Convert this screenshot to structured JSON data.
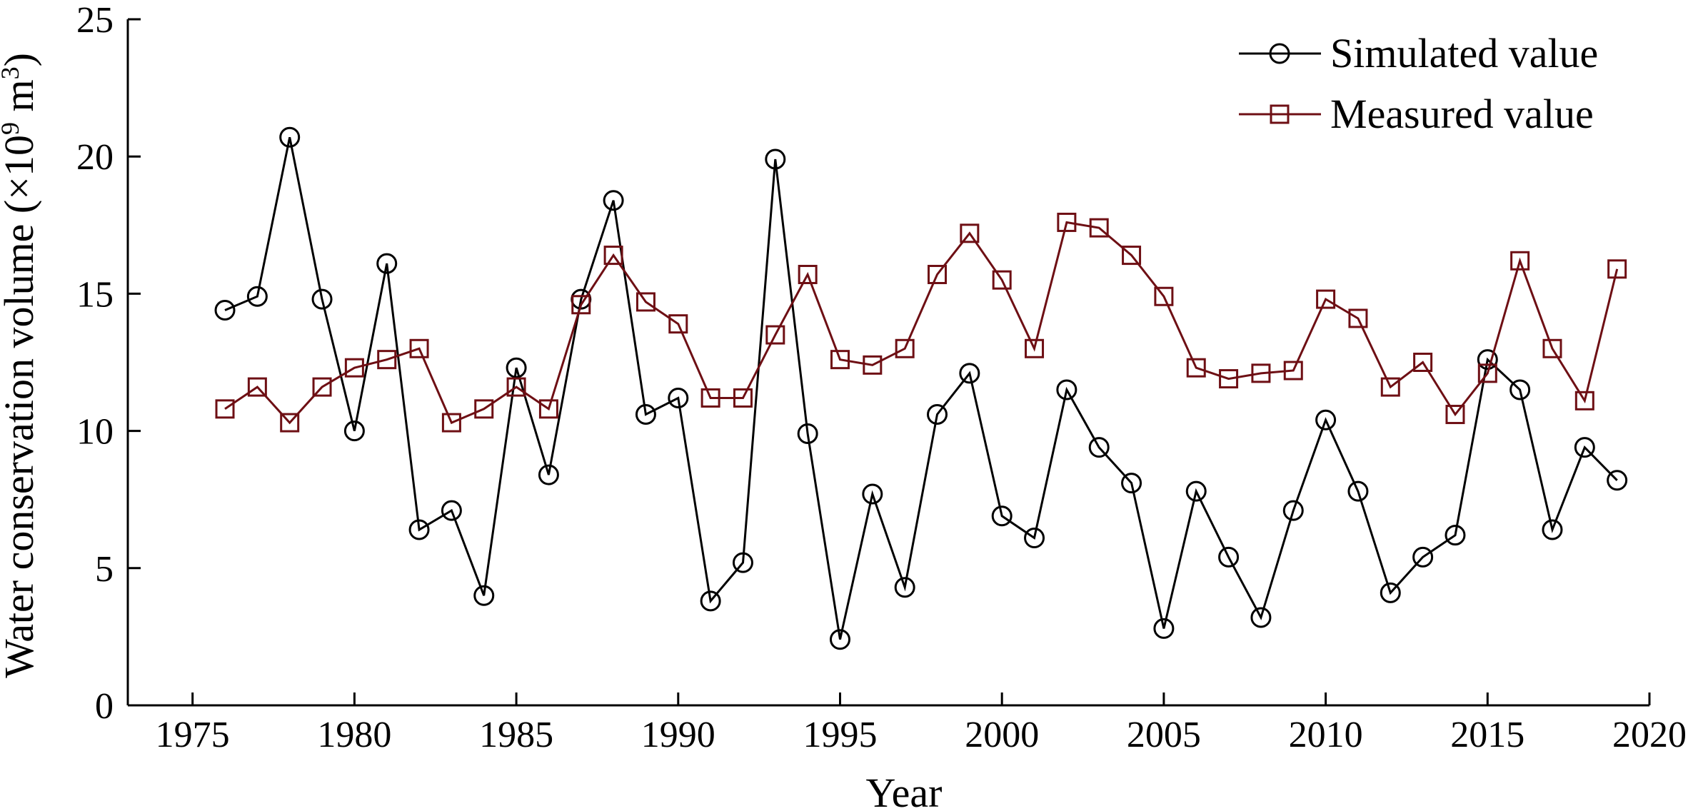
{
  "chart_data": {
    "type": "line",
    "title": "",
    "xlabel": "Year",
    "ylabel_main": "Water conservation volume (×10",
    "ylabel_sup": "9",
    "ylabel_unit": " m",
    "ylabel_unit_sup": "3",
    "ylabel_close": ")",
    "xlim": [
      1973,
      2020
    ],
    "ylim": [
      0,
      25
    ],
    "x_ticks": [
      1975,
      1980,
      1985,
      1990,
      1995,
      2000,
      2005,
      2010,
      2015,
      2020
    ],
    "x_tick_labels": [
      "1975",
      "1980",
      "1985",
      "1990",
      "1995",
      "2000",
      "2005",
      "2010",
      "2015",
      "2020"
    ],
    "y_ticks": [
      0,
      5,
      10,
      15,
      20,
      25
    ],
    "y_tick_labels": [
      "0",
      "5",
      "10",
      "15",
      "20",
      "25"
    ],
    "grid": false,
    "legend_position": "top-right",
    "x": [
      1976,
      1977,
      1978,
      1979,
      1980,
      1981,
      1982,
      1983,
      1984,
      1985,
      1986,
      1987,
      1988,
      1989,
      1990,
      1991,
      1992,
      1993,
      1994,
      1995,
      1996,
      1997,
      1998,
      1999,
      2000,
      2001,
      2002,
      2003,
      2004,
      2005,
      2006,
      2007,
      2008,
      2009,
      2010,
      2011,
      2012,
      2013,
      2014,
      2015,
      2016,
      2017,
      2018,
      2019
    ],
    "series": [
      {
        "name": "Simulated value",
        "color": "#000000",
        "marker": "circle",
        "values": [
          14.4,
          14.9,
          20.7,
          14.8,
          10.0,
          16.1,
          6.4,
          7.1,
          4.0,
          12.3,
          8.4,
          14.8,
          18.4,
          10.6,
          11.2,
          3.8,
          5.2,
          19.9,
          9.9,
          2.4,
          7.7,
          4.3,
          10.6,
          12.1,
          6.9,
          6.1,
          11.5,
          9.4,
          8.1,
          2.8,
          7.8,
          5.4,
          3.2,
          7.1,
          10.4,
          7.8,
          4.1,
          5.4,
          6.2,
          12.6,
          11.5,
          6.4,
          9.4,
          8.2
        ]
      },
      {
        "name": "Measured value",
        "color": "#6e0f14",
        "marker": "square",
        "values": [
          10.8,
          11.6,
          10.3,
          11.6,
          12.3,
          12.6,
          13.0,
          10.3,
          10.8,
          11.6,
          10.8,
          14.6,
          16.4,
          14.7,
          13.9,
          11.2,
          11.2,
          13.5,
          15.7,
          12.6,
          12.4,
          13.0,
          15.7,
          17.2,
          15.5,
          13.0,
          17.6,
          17.4,
          16.4,
          14.9,
          12.3,
          11.9,
          12.1,
          12.2,
          14.8,
          14.1,
          11.6,
          12.5,
          10.6,
          12.1,
          16.2,
          13.0,
          11.1,
          15.9
        ]
      }
    ]
  }
}
